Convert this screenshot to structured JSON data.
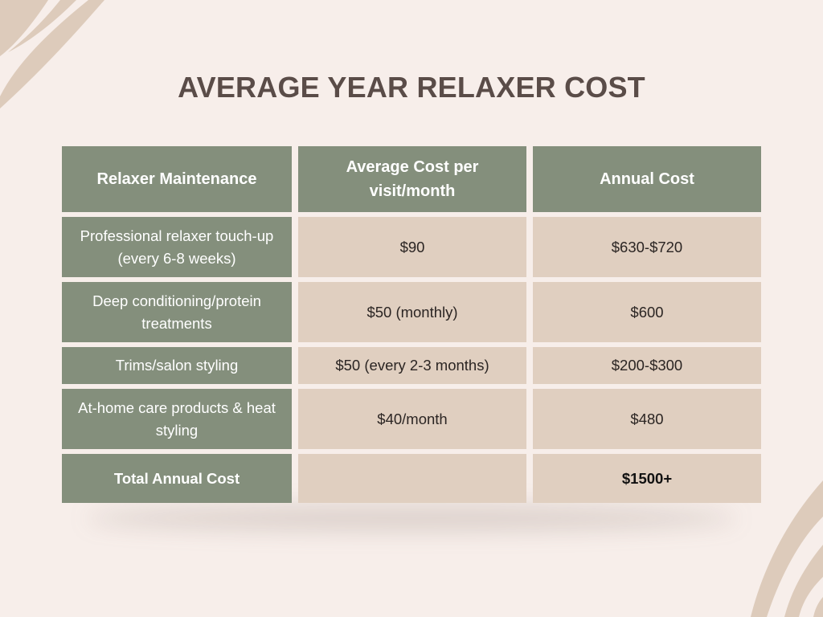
{
  "title": "AVERAGE YEAR RELAXER COST",
  "colors": {
    "background": "#f7eeea",
    "header_green": "#848f7c",
    "cell_tan": "#e0cfc0",
    "title_text": "#5a4c48",
    "decor": "#ddcbbb"
  },
  "table": {
    "headers": [
      "Relaxer Maintenance",
      "Average Cost per visit/month",
      "Annual Cost"
    ],
    "rows": [
      {
        "item": "Professional relaxer touch-up (every 6-8 weeks)",
        "per_visit": "$90",
        "annual": "$630-$720"
      },
      {
        "item": "Deep conditioning/protein treatments",
        "per_visit": "$50 (monthly)",
        "annual": "$600"
      },
      {
        "item": "Trims/salon styling",
        "per_visit": "$50 (every 2-3 months)",
        "annual": "$200-$300"
      },
      {
        "item": "At-home care products & heat styling",
        "per_visit": "$40/month",
        "annual": "$480"
      }
    ],
    "total": {
      "label": "Total Annual Cost",
      "per_visit": "",
      "annual": "$1500+"
    }
  }
}
